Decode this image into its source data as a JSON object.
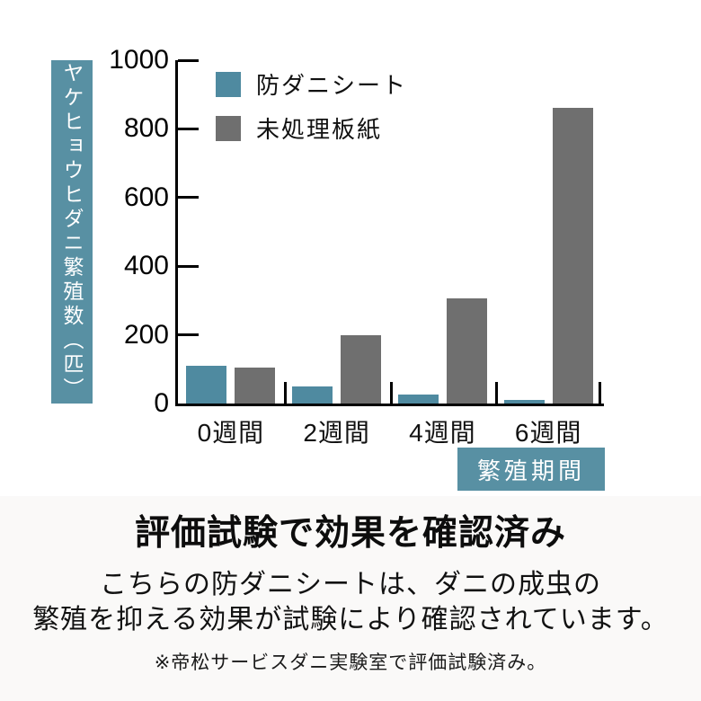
{
  "page": {
    "heading": "評価試験で効果を確認済み",
    "body_line1": "こちらの防ダニシートは、ダニの成虫の",
    "body_line2": "繁殖を抑える効果が試験により確認されています。",
    "footnote": "※帝松サービスダニ実験室で評価試験済み。"
  },
  "colors": {
    "accent_teal": "#5890A3",
    "bar_teal": "#4F8AA0",
    "bar_gray": "#6F6F6F",
    "axis": "#000000"
  },
  "chart_data": {
    "type": "bar",
    "title": "",
    "y_axis_label": "ヤケヒョウヒダニ繁殖数（匹）",
    "x_axis_label": "繁殖期間",
    "categories": [
      "0週間",
      "2週間",
      "4週間",
      "6週間"
    ],
    "series": [
      {
        "name": "防ダニシート",
        "color": "#4F8AA0",
        "values": [
          110,
          50,
          25,
          10
        ]
      },
      {
        "name": "未処理板紙",
        "color": "#6F6F6F",
        "values": [
          105,
          200,
          305,
          860
        ]
      }
    ],
    "ylim": [
      0,
      1000
    ],
    "yticks": [
      0,
      200,
      400,
      600,
      800,
      1000
    ],
    "grid": false,
    "legend_position": "top-left"
  }
}
